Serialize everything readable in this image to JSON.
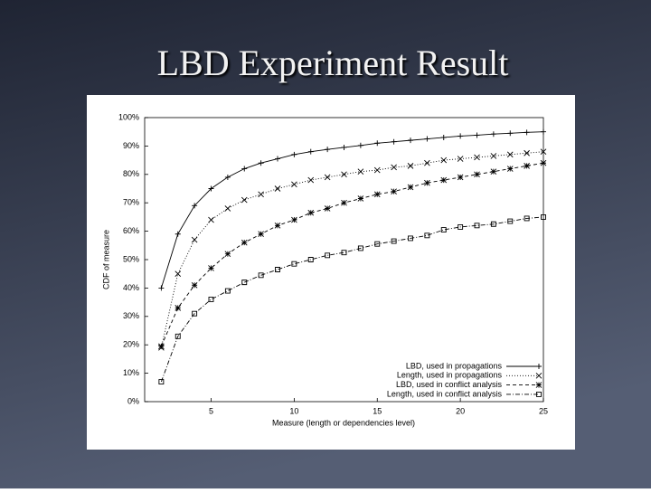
{
  "slide_title": "LBD Experiment Result",
  "chart_data": {
    "type": "line",
    "x": [
      2,
      3,
      4,
      5,
      6,
      7,
      8,
      9,
      10,
      11,
      12,
      13,
      14,
      15,
      16,
      17,
      18,
      19,
      20,
      21,
      22,
      23,
      24,
      25
    ],
    "xlim": [
      1,
      25
    ],
    "xticks": [
      5,
      10,
      15,
      20,
      25
    ],
    "ylim": [
      0,
      100
    ],
    "yticks": [
      {
        "value": 0,
        "label": "0%"
      },
      {
        "value": 10,
        "label": "10%"
      },
      {
        "value": 20,
        "label": "20%"
      },
      {
        "value": 30,
        "label": "30%"
      },
      {
        "value": 40,
        "label": "40%"
      },
      {
        "value": 50,
        "label": "50%"
      },
      {
        "value": 60,
        "label": "60%"
      },
      {
        "value": 70,
        "label": "70%"
      },
      {
        "value": 80,
        "label": "80%"
      },
      {
        "value": 90,
        "label": "90%"
      },
      {
        "value": 100,
        "label": "100%"
      }
    ],
    "xlabel": "Measure (length or dependencies level)",
    "ylabel": "CDF of measure",
    "legend": "lower right",
    "series": [
      {
        "name": "LBD, used in propagations",
        "color": "#000000",
        "marker": "plus",
        "dash": "none",
        "values": [
          40,
          59,
          69,
          75,
          79,
          82,
          84,
          85.5,
          87,
          88,
          88.8,
          89.5,
          90.2,
          91,
          91.5,
          92,
          92.5,
          93,
          93.5,
          93.8,
          94.2,
          94.5,
          94.8,
          95
        ]
      },
      {
        "name": "Length, used in propagations",
        "color": "#000000",
        "marker": "cross",
        "dash": "1 2",
        "values": [
          19,
          45,
          57,
          64,
          68,
          71,
          73,
          75,
          76.5,
          78,
          79,
          80,
          81,
          81.5,
          82.5,
          83,
          84,
          85,
          85.5,
          86,
          86.5,
          87,
          87.5,
          88
        ]
      },
      {
        "name": "LBD, used in conflict analysis",
        "color": "#000000",
        "marker": "star",
        "dash": "4 3",
        "values": [
          19.5,
          33,
          41,
          47,
          52,
          56,
          59,
          62,
          64,
          66.5,
          68,
          70,
          71.5,
          73,
          74,
          75.5,
          77,
          78,
          79,
          80,
          81,
          82,
          83,
          84
        ]
      },
      {
        "name": "Length, used in conflict analysis",
        "color": "#000000",
        "marker": "square",
        "dash": "5 2 1 2",
        "values": [
          7,
          23,
          31,
          36,
          39,
          42,
          44.5,
          46.5,
          48.5,
          50,
          51.5,
          52.5,
          54,
          55.5,
          56.5,
          57.5,
          58.5,
          60.5,
          61.5,
          62,
          62.5,
          63.5,
          64.5,
          65
        ]
      }
    ]
  }
}
